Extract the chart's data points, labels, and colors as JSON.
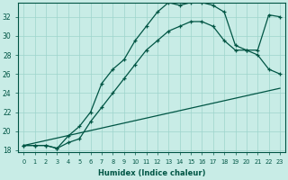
{
  "xlabel": "Humidex (Indice chaleur)",
  "bg_color": "#c8ece6",
  "grid_color": "#9dd4cc",
  "line_color": "#005544",
  "xlim": [
    -0.5,
    23.5
  ],
  "ylim": [
    17.8,
    33.5
  ],
  "xticks": [
    0,
    1,
    2,
    3,
    4,
    5,
    6,
    7,
    8,
    9,
    10,
    11,
    12,
    13,
    14,
    15,
    16,
    17,
    18,
    19,
    20,
    21,
    22,
    23
  ],
  "yticks": [
    18,
    20,
    22,
    24,
    26,
    28,
    30,
    32
  ],
  "line1_x": [
    0,
    23
  ],
  "line1_y": [
    18.5,
    24.5
  ],
  "line2_x": [
    0,
    1,
    2,
    3,
    4,
    5,
    6,
    7,
    8,
    9,
    10,
    11,
    12,
    13,
    14,
    15,
    16,
    17,
    18,
    19,
    20,
    21,
    22,
    23
  ],
  "line2_y": [
    18.5,
    18.5,
    18.5,
    18.2,
    18.8,
    19.2,
    21.0,
    22.5,
    24.0,
    25.5,
    27.0,
    28.5,
    29.5,
    30.5,
    31.0,
    31.5,
    31.5,
    31.0,
    29.5,
    28.5,
    28.5,
    28.0,
    26.5,
    26.0
  ],
  "line3_x": [
    0,
    1,
    2,
    3,
    4,
    5,
    6,
    7,
    8,
    9,
    10,
    11,
    12,
    13,
    14,
    15,
    16,
    17,
    18,
    19,
    20,
    21,
    22,
    23
  ],
  "line3_y": [
    18.5,
    18.5,
    18.5,
    18.2,
    19.5,
    20.5,
    22.0,
    25.0,
    26.5,
    27.5,
    29.5,
    31.0,
    32.5,
    33.5,
    33.2,
    33.5,
    33.5,
    33.2,
    32.5,
    29.0,
    28.5,
    28.5,
    32.2,
    32.0
  ],
  "xticklabels": [
    "0",
    "1",
    "2",
    "3",
    "4",
    "5",
    "6",
    "7",
    "8",
    "9",
    "10",
    "11",
    "12",
    "13",
    "14",
    "15",
    "16",
    "17",
    "18",
    "19",
    "20",
    "21",
    "22",
    "23"
  ]
}
